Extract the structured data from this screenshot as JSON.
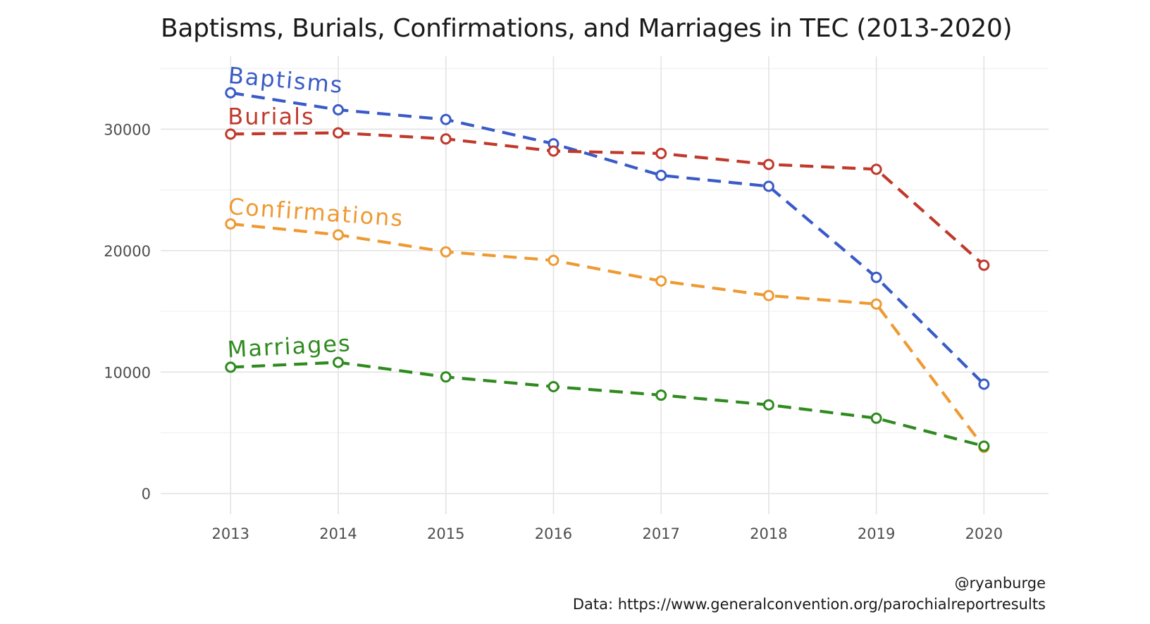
{
  "chart_data": {
    "type": "line",
    "title": "Baptisms, Burials, Confirmations, and Marriages in TEC (2013-2020)",
    "x": [
      2013,
      2014,
      2015,
      2016,
      2017,
      2018,
      2019,
      2020
    ],
    "xlim": [
      2012.35,
      2020.6
    ],
    "ylim": [
      -1700,
      36000
    ],
    "y_ticks": [
      0,
      10000,
      20000,
      30000
    ],
    "x_tick_labels": [
      "2013",
      "2014",
      "2015",
      "2016",
      "2017",
      "2018",
      "2019",
      "2020"
    ],
    "y_tick_labels": [
      "0",
      "10000",
      "20000",
      "30000"
    ],
    "grid": true,
    "legend": "direct labels on lines",
    "line_style": "dashed",
    "marker": "open circle",
    "series": [
      {
        "name": "Baptisms",
        "color": "#3a5bc7",
        "values": [
          33000,
          31600,
          30800,
          28800,
          26200,
          25300,
          17800,
          9000
        ]
      },
      {
        "name": "Burials",
        "color": "#c0392b",
        "values": [
          29600,
          29700,
          29200,
          28200,
          28000,
          27100,
          26700,
          18800
        ]
      },
      {
        "name": "Confirmations",
        "color": "#ee9a33",
        "values": [
          22200,
          21300,
          19900,
          19200,
          17500,
          16300,
          15600,
          3800
        ]
      },
      {
        "name": "Marriages",
        "color": "#2f8a1f",
        "values": [
          10400,
          10800,
          9600,
          8800,
          8100,
          7300,
          6200,
          3900
        ]
      }
    ]
  },
  "caption": {
    "handle": "@ryanburge",
    "source": "Data: https://www.generalconvention.org/parochialreportresults"
  }
}
